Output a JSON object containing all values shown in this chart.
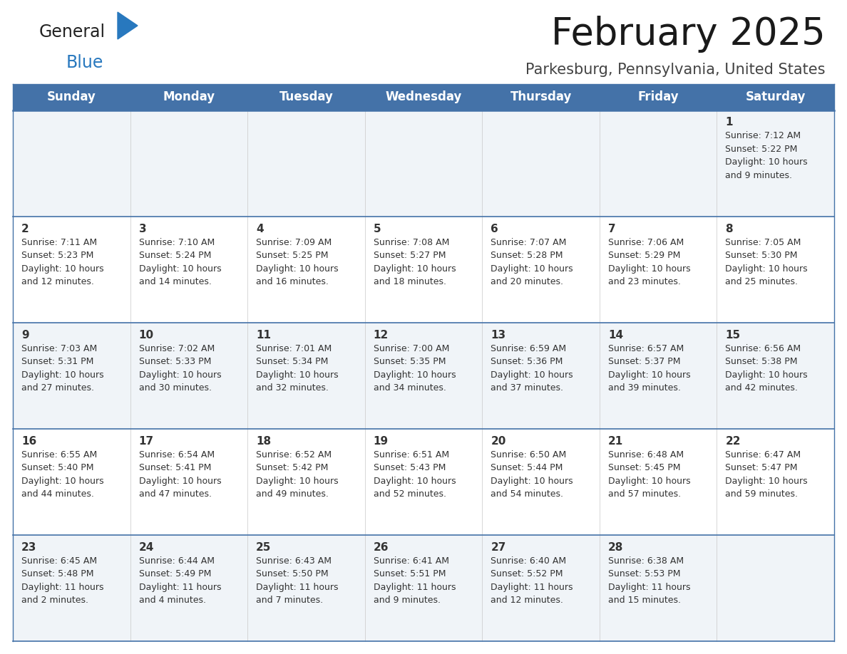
{
  "title": "February 2025",
  "subtitle": "Parkesburg, Pennsylvania, United States",
  "header_color": "#4472A8",
  "header_text_color": "#FFFFFF",
  "cell_bg_color": "#F0F4F8",
  "cell_bg_white": "#FFFFFF",
  "day_names": [
    "Sunday",
    "Monday",
    "Tuesday",
    "Wednesday",
    "Thursday",
    "Friday",
    "Saturday"
  ],
  "separator_color": "#4472A8",
  "date_text_color": "#333333",
  "info_text_color": "#333333",
  "weeks": [
    [
      {
        "day": "",
        "info": ""
      },
      {
        "day": "",
        "info": ""
      },
      {
        "day": "",
        "info": ""
      },
      {
        "day": "",
        "info": ""
      },
      {
        "day": "",
        "info": ""
      },
      {
        "day": "",
        "info": ""
      },
      {
        "day": "1",
        "info": "Sunrise: 7:12 AM\nSunset: 5:22 PM\nDaylight: 10 hours\nand 9 minutes."
      }
    ],
    [
      {
        "day": "2",
        "info": "Sunrise: 7:11 AM\nSunset: 5:23 PM\nDaylight: 10 hours\nand 12 minutes."
      },
      {
        "day": "3",
        "info": "Sunrise: 7:10 AM\nSunset: 5:24 PM\nDaylight: 10 hours\nand 14 minutes."
      },
      {
        "day": "4",
        "info": "Sunrise: 7:09 AM\nSunset: 5:25 PM\nDaylight: 10 hours\nand 16 minutes."
      },
      {
        "day": "5",
        "info": "Sunrise: 7:08 AM\nSunset: 5:27 PM\nDaylight: 10 hours\nand 18 minutes."
      },
      {
        "day": "6",
        "info": "Sunrise: 7:07 AM\nSunset: 5:28 PM\nDaylight: 10 hours\nand 20 minutes."
      },
      {
        "day": "7",
        "info": "Sunrise: 7:06 AM\nSunset: 5:29 PM\nDaylight: 10 hours\nand 23 minutes."
      },
      {
        "day": "8",
        "info": "Sunrise: 7:05 AM\nSunset: 5:30 PM\nDaylight: 10 hours\nand 25 minutes."
      }
    ],
    [
      {
        "day": "9",
        "info": "Sunrise: 7:03 AM\nSunset: 5:31 PM\nDaylight: 10 hours\nand 27 minutes."
      },
      {
        "day": "10",
        "info": "Sunrise: 7:02 AM\nSunset: 5:33 PM\nDaylight: 10 hours\nand 30 minutes."
      },
      {
        "day": "11",
        "info": "Sunrise: 7:01 AM\nSunset: 5:34 PM\nDaylight: 10 hours\nand 32 minutes."
      },
      {
        "day": "12",
        "info": "Sunrise: 7:00 AM\nSunset: 5:35 PM\nDaylight: 10 hours\nand 34 minutes."
      },
      {
        "day": "13",
        "info": "Sunrise: 6:59 AM\nSunset: 5:36 PM\nDaylight: 10 hours\nand 37 minutes."
      },
      {
        "day": "14",
        "info": "Sunrise: 6:57 AM\nSunset: 5:37 PM\nDaylight: 10 hours\nand 39 minutes."
      },
      {
        "day": "15",
        "info": "Sunrise: 6:56 AM\nSunset: 5:38 PM\nDaylight: 10 hours\nand 42 minutes."
      }
    ],
    [
      {
        "day": "16",
        "info": "Sunrise: 6:55 AM\nSunset: 5:40 PM\nDaylight: 10 hours\nand 44 minutes."
      },
      {
        "day": "17",
        "info": "Sunrise: 6:54 AM\nSunset: 5:41 PM\nDaylight: 10 hours\nand 47 minutes."
      },
      {
        "day": "18",
        "info": "Sunrise: 6:52 AM\nSunset: 5:42 PM\nDaylight: 10 hours\nand 49 minutes."
      },
      {
        "day": "19",
        "info": "Sunrise: 6:51 AM\nSunset: 5:43 PM\nDaylight: 10 hours\nand 52 minutes."
      },
      {
        "day": "20",
        "info": "Sunrise: 6:50 AM\nSunset: 5:44 PM\nDaylight: 10 hours\nand 54 minutes."
      },
      {
        "day": "21",
        "info": "Sunrise: 6:48 AM\nSunset: 5:45 PM\nDaylight: 10 hours\nand 57 minutes."
      },
      {
        "day": "22",
        "info": "Sunrise: 6:47 AM\nSunset: 5:47 PM\nDaylight: 10 hours\nand 59 minutes."
      }
    ],
    [
      {
        "day": "23",
        "info": "Sunrise: 6:45 AM\nSunset: 5:48 PM\nDaylight: 11 hours\nand 2 minutes."
      },
      {
        "day": "24",
        "info": "Sunrise: 6:44 AM\nSunset: 5:49 PM\nDaylight: 11 hours\nand 4 minutes."
      },
      {
        "day": "25",
        "info": "Sunrise: 6:43 AM\nSunset: 5:50 PM\nDaylight: 11 hours\nand 7 minutes."
      },
      {
        "day": "26",
        "info": "Sunrise: 6:41 AM\nSunset: 5:51 PM\nDaylight: 11 hours\nand 9 minutes."
      },
      {
        "day": "27",
        "info": "Sunrise: 6:40 AM\nSunset: 5:52 PM\nDaylight: 11 hours\nand 12 minutes."
      },
      {
        "day": "28",
        "info": "Sunrise: 6:38 AM\nSunset: 5:53 PM\nDaylight: 11 hours\nand 15 minutes."
      },
      {
        "day": "",
        "info": ""
      }
    ]
  ],
  "logo_text_general": "General",
  "logo_text_blue": "Blue",
  "logo_color_general": "#222222",
  "logo_color_blue": "#2878BE",
  "logo_triangle_color": "#2878BE",
  "title_fontsize": 38,
  "subtitle_fontsize": 15,
  "header_fontsize": 12,
  "day_num_fontsize": 11,
  "info_fontsize": 9
}
